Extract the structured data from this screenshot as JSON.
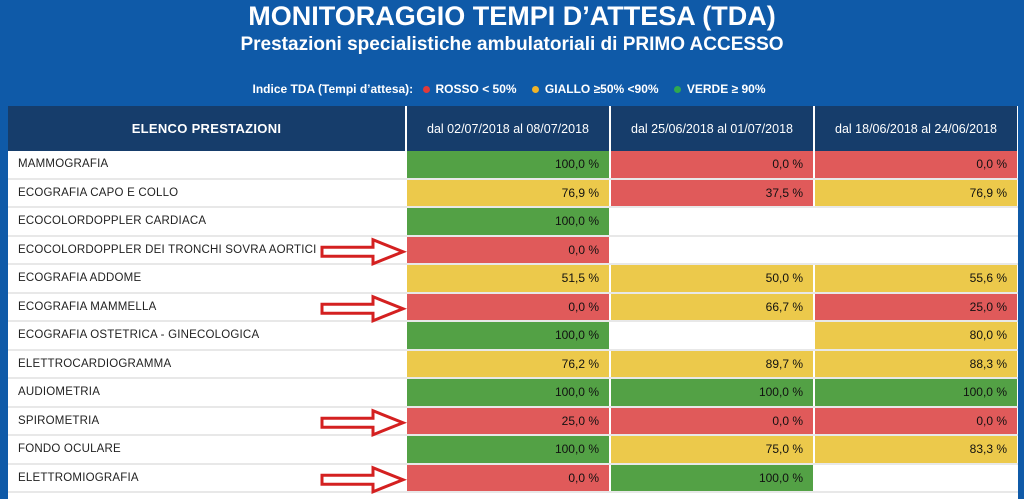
{
  "header": {
    "title": "MONITORAGGIO TEMPI D’ATTESA  (TDA)",
    "subtitle": "Prestazioni specialistiche ambulatoriali di PRIMO ACCESSO"
  },
  "legend": {
    "prefix": "Indice TDA (Tempi d’attesa):",
    "items": [
      {
        "label": "ROSSO < 50%",
        "color": "#e03a3a"
      },
      {
        "label": "GIALLO ≥50%  <90%",
        "color": "#f0b429"
      },
      {
        "label": "VERDE ≥ 90%",
        "color": "#2fa84f"
      }
    ]
  },
  "colors": {
    "red": "#e05a5a",
    "yellow": "#ecc94b",
    "green": "#53a145",
    "header": "#163d6b",
    "arrow": "#d42020"
  },
  "table": {
    "headers": [
      "ELENCO PRESTAZIONI",
      "dal 02/07/2018 al 08/07/2018",
      "dal 25/06/2018 al 01/07/2018",
      "dal 18/06/2018 al 24/06/2018"
    ],
    "rows": [
      {
        "name": "MAMMOGRAFIA",
        "cells": [
          {
            "v": "100,0 %",
            "c": "green"
          },
          {
            "v": "0,0 %",
            "c": "red"
          },
          {
            "v": "0,0 %",
            "c": "red"
          }
        ],
        "arrow": false
      },
      {
        "name": "ECOGRAFIA CAPO E COLLO",
        "cells": [
          {
            "v": "76,9 %",
            "c": "yellow"
          },
          {
            "v": "37,5 %",
            "c": "red"
          },
          {
            "v": "76,9 %",
            "c": "yellow"
          }
        ],
        "arrow": false
      },
      {
        "name": "ECOCOLORDOPPLER CARDIACA",
        "cells": [
          {
            "v": "100,0 %",
            "c": "green"
          },
          {
            "v": "",
            "c": "empty"
          },
          {
            "v": "",
            "c": "empty"
          }
        ],
        "arrow": false
      },
      {
        "name": "ECOCOLORDOPPLER DEI TRONCHI SOVRA AORTICI",
        "cells": [
          {
            "v": "0,0 %",
            "c": "red"
          },
          {
            "v": "",
            "c": "empty"
          },
          {
            "v": "",
            "c": "empty"
          }
        ],
        "arrow": true
      },
      {
        "name": "ECOGRAFIA ADDOME",
        "cells": [
          {
            "v": "51,5 %",
            "c": "yellow"
          },
          {
            "v": "50,0 %",
            "c": "yellow"
          },
          {
            "v": "55,6 %",
            "c": "yellow"
          }
        ],
        "arrow": false
      },
      {
        "name": "ECOGRAFIA MAMMELLA",
        "cells": [
          {
            "v": "0,0 %",
            "c": "red"
          },
          {
            "v": "66,7 %",
            "c": "yellow"
          },
          {
            "v": "25,0 %",
            "c": "red"
          }
        ],
        "arrow": true
      },
      {
        "name": "ECOGRAFIA OSTETRICA - GINECOLOGICA",
        "cells": [
          {
            "v": "100,0 %",
            "c": "green"
          },
          {
            "v": "",
            "c": "empty"
          },
          {
            "v": "80,0 %",
            "c": "yellow"
          }
        ],
        "arrow": false
      },
      {
        "name": "ELETTROCARDIOGRAMMA",
        "cells": [
          {
            "v": "76,2 %",
            "c": "yellow"
          },
          {
            "v": "89,7 %",
            "c": "yellow"
          },
          {
            "v": "88,3 %",
            "c": "yellow"
          }
        ],
        "arrow": false
      },
      {
        "name": "AUDIOMETRIA",
        "cells": [
          {
            "v": "100,0 %",
            "c": "green"
          },
          {
            "v": "100,0 %",
            "c": "green"
          },
          {
            "v": "100,0 %",
            "c": "green"
          }
        ],
        "arrow": false
      },
      {
        "name": "SPIROMETRIA",
        "cells": [
          {
            "v": "25,0 %",
            "c": "red"
          },
          {
            "v": "0,0 %",
            "c": "red"
          },
          {
            "v": "0,0 %",
            "c": "red"
          }
        ],
        "arrow": true
      },
      {
        "name": "FONDO OCULARE",
        "cells": [
          {
            "v": "100,0 %",
            "c": "green"
          },
          {
            "v": "75,0 %",
            "c": "yellow"
          },
          {
            "v": "83,3 %",
            "c": "yellow"
          }
        ],
        "arrow": false
      },
      {
        "name": "ELETTROMIOGRAFIA",
        "cells": [
          {
            "v": "0,0 %",
            "c": "red"
          },
          {
            "v": "100,0 %",
            "c": "green"
          },
          {
            "v": "",
            "c": "empty"
          }
        ],
        "arrow": true
      }
    ]
  }
}
